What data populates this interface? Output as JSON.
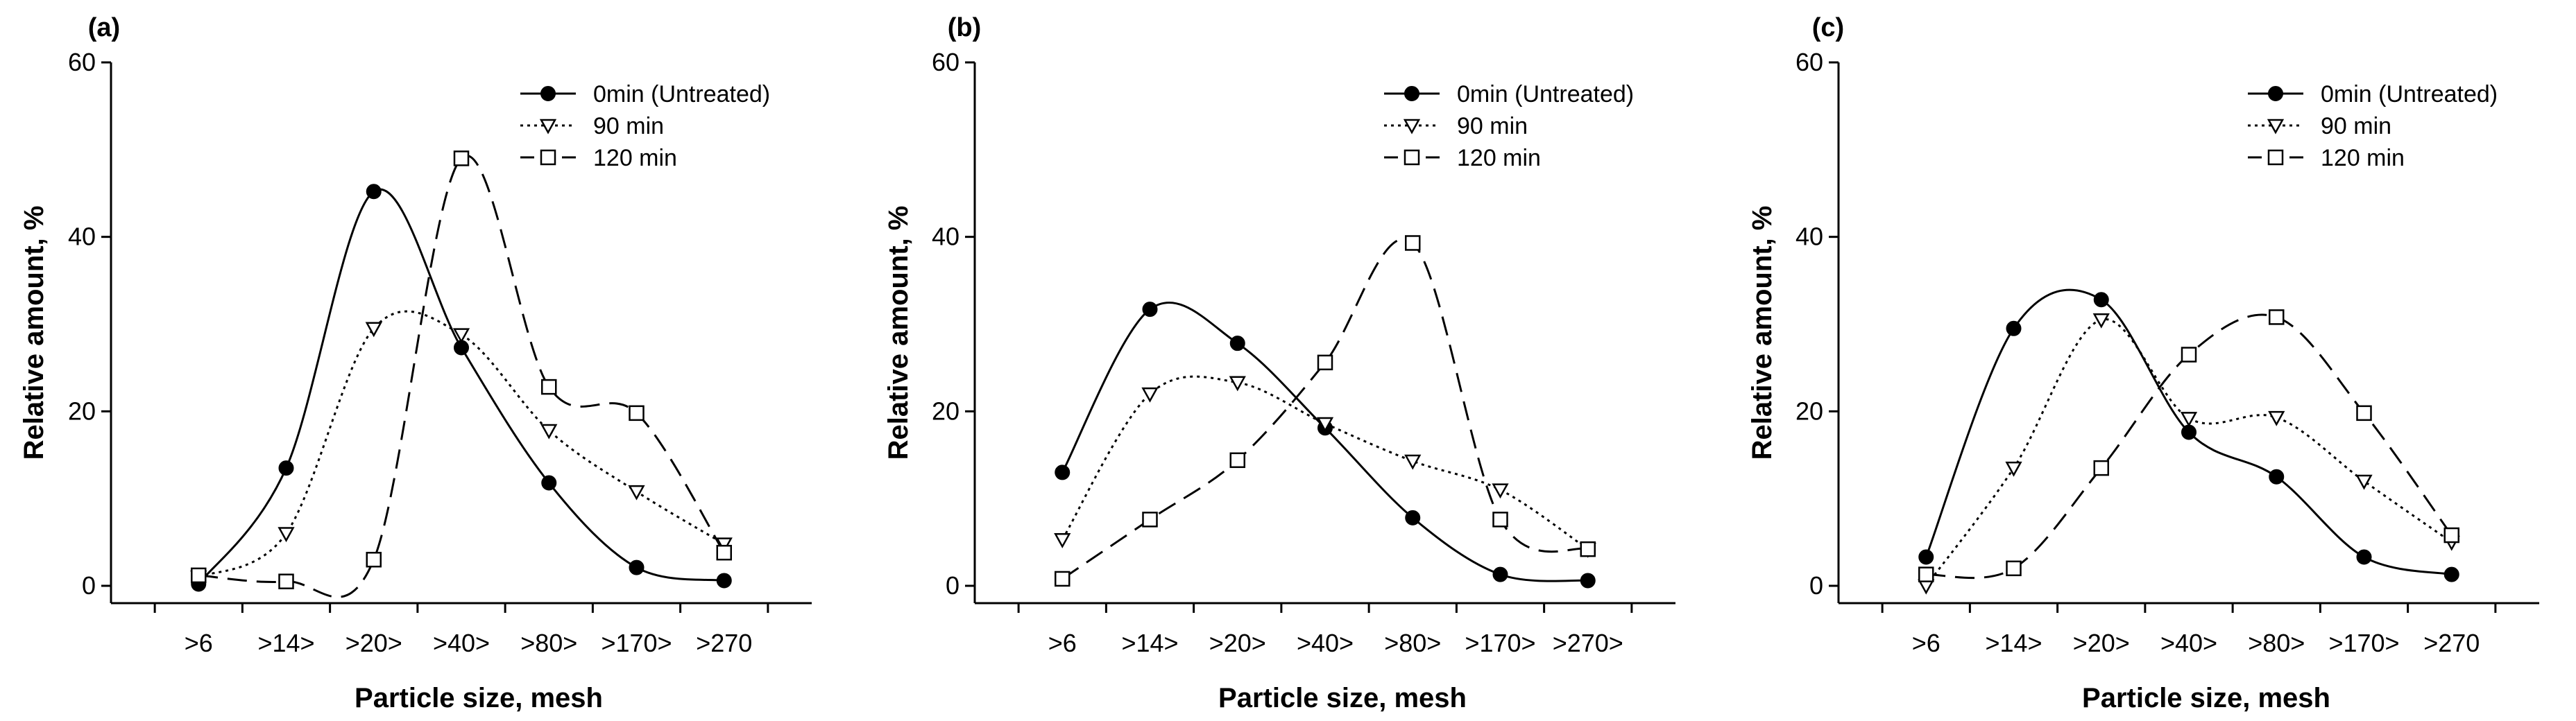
{
  "chart_data": [
    {
      "type": "line",
      "panel_label": "(a)",
      "categories": [
        ">6",
        ">14>",
        ">20>",
        ">40>",
        ">80>",
        ">170>",
        ">270"
      ],
      "xlabel": "Particle size, mesh",
      "ylabel": "Relative amount, %",
      "ylim": [
        0,
        60
      ],
      "yticks": [
        "0",
        "20",
        "40",
        "60"
      ],
      "legend_position": "top-right",
      "series": [
        {
          "name": "0min (Untreated)",
          "values": [
            0.2,
            13.5,
            45.2,
            27.3,
            11.8,
            2.1,
            0.6
          ]
        },
        {
          "name": "90 min",
          "values": [
            1.0,
            6.0,
            29.5,
            28.8,
            17.8,
            10.8,
            4.8
          ]
        },
        {
          "name": "120 min",
          "values": [
            1.2,
            0.5,
            3.0,
            49.0,
            22.8,
            19.8,
            3.8
          ]
        }
      ]
    },
    {
      "type": "line",
      "panel_label": "(b)",
      "categories": [
        ">6",
        ">14>",
        ">20>",
        ">40>",
        ">80>",
        ">170>",
        ">270>"
      ],
      "xlabel": "Particle size, mesh",
      "ylabel": "Relative amount, %",
      "ylim": [
        0,
        60
      ],
      "yticks": [
        "0",
        "20",
        "40",
        "60"
      ],
      "legend_position": "top-right",
      "series": [
        {
          "name": "0min (Untreated)",
          "values": [
            13.0,
            31.7,
            27.8,
            18.1,
            7.8,
            1.3,
            0.6
          ]
        },
        {
          "name": "90 min",
          "values": [
            5.3,
            22.0,
            23.3,
            18.6,
            14.3,
            11.0,
            4.2
          ]
        },
        {
          "name": "120 min",
          "values": [
            0.8,
            7.6,
            14.4,
            25.6,
            39.3,
            7.6,
            4.2
          ]
        }
      ]
    },
    {
      "type": "line",
      "panel_label": "(c)",
      "categories": [
        ">6",
        ">14>",
        ">20>",
        ">40>",
        ">80>",
        ">170>",
        ">270"
      ],
      "xlabel": "Particle size, mesh",
      "ylabel": "Relative amount, %",
      "ylim": [
        0,
        60
      ],
      "yticks": [
        "0",
        "20",
        "40",
        "60"
      ],
      "legend_position": "top-right",
      "series": [
        {
          "name": "0min (Untreated)",
          "values": [
            3.3,
            29.5,
            32.8,
            17.6,
            12.5,
            3.3,
            1.3
          ]
        },
        {
          "name": "90 min",
          "values": [
            0.0,
            13.5,
            30.5,
            19.2,
            19.3,
            12.0,
            5.0
          ]
        },
        {
          "name": "120 min",
          "values": [
            1.3,
            2.0,
            13.5,
            26.5,
            30.8,
            19.8,
            5.8
          ]
        }
      ]
    }
  ]
}
